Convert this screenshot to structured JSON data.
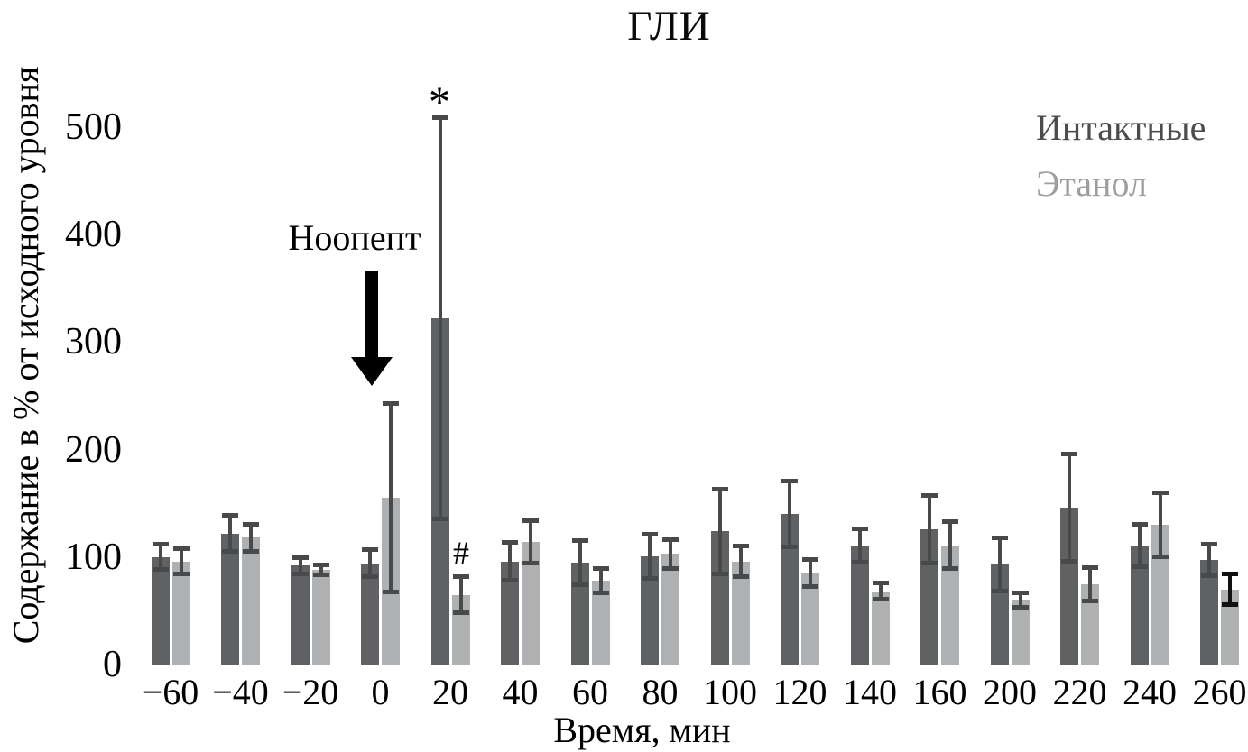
{
  "chart_data": {
    "type": "bar",
    "title": "ГЛИ",
    "xlabel": "Время, мин",
    "ylabel": "Содержание в % от исходного уровня",
    "categories": [
      "−60",
      "−40",
      "−20",
      "0",
      "20",
      "40",
      "60",
      "80",
      "100",
      "120",
      "140",
      "160",
      "200",
      "220",
      "240",
      "260"
    ],
    "y_ticks": [
      0,
      100,
      200,
      300,
      400,
      500
    ],
    "ylim": [
      0,
      540
    ],
    "grid": false,
    "axes_lines": false,
    "legend_position": "top-right",
    "series": [
      {
        "name": "Интактные",
        "color": "#5f6163",
        "error_color": "#47494b",
        "values": [
          100,
          122,
          92,
          94,
          322,
          96,
          95,
          101,
          124,
          140,
          111,
          126,
          93,
          146,
          111,
          97
        ],
        "errors": [
          12,
          17,
          8,
          13,
          187,
          18,
          21,
          21,
          40,
          31,
          16,
          32,
          25,
          50,
          20,
          15
        ]
      },
      {
        "name": "Этанол",
        "color": "#aeb0b2",
        "error_color": "#47494b",
        "error_color_overrides": [
          {
            "index": 15,
            "color": "#111111"
          }
        ],
        "values": [
          96,
          118,
          88,
          155,
          65,
          114,
          78,
          103,
          96,
          85,
          68,
          111,
          60,
          75,
          130,
          70
        ],
        "errors": [
          12,
          13,
          5,
          88,
          17,
          20,
          12,
          14,
          15,
          13,
          8,
          22,
          7,
          16,
          30,
          15
        ]
      }
    ],
    "annotations": {
      "arrow_label": "Ноопепт",
      "arrow_points_to_category": "0",
      "star": "*",
      "star_category": "20",
      "star_series": "Интактные",
      "hash": "#",
      "hash_category": "20",
      "hash_series": "Этанол"
    }
  },
  "colors": {
    "background": "#ffffff",
    "legend_intact_text": "#4c4c4c",
    "legend_ethanol_text": "#9c9ea0",
    "annotation_arrow": "#000000"
  }
}
